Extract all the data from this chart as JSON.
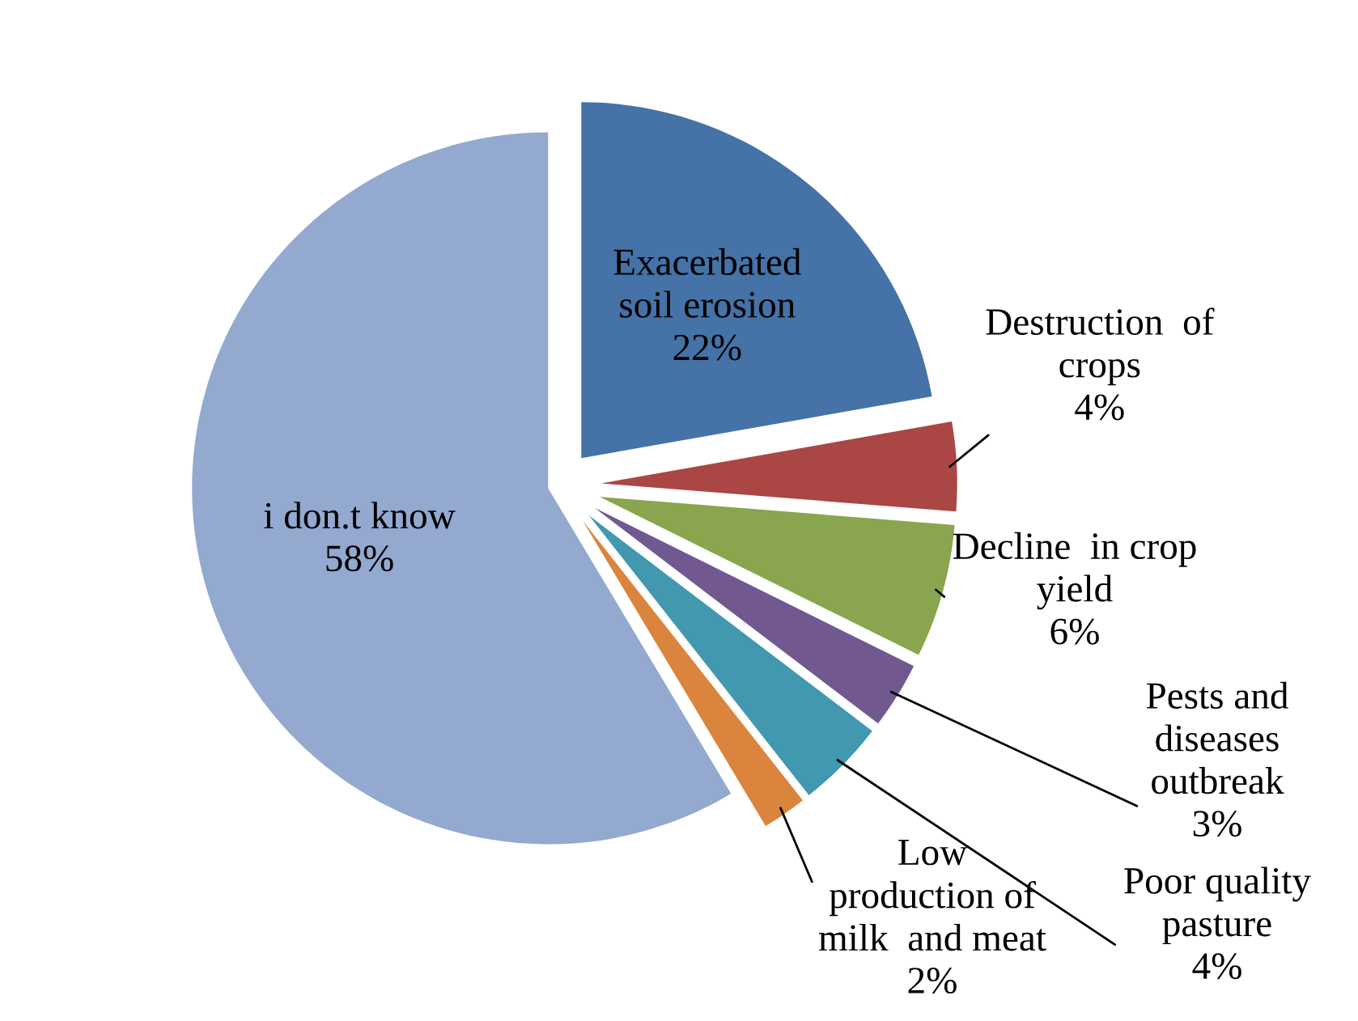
{
  "chart_data": {
    "type": "pie",
    "categories": [
      "Exacerbated\nsoil erosion",
      "Destruction  of\ncrops",
      "Decline  in crop\nyield",
      "Pests and\ndiseases\noutbreak",
      "Poor quality\npasture",
      "Low\nproduction of\nmilk  and meat",
      "i don.t know"
    ],
    "values": [
      22,
      4,
      6,
      3,
      4,
      2,
      58
    ],
    "value_labels": [
      "22%",
      "4%",
      "6%",
      "3%",
      "4%",
      "2%",
      "58%"
    ],
    "colors": [
      "#4572a7",
      "#aa4643",
      "#89a54e",
      "#71588f",
      "#4198af",
      "#db843d",
      "#93a9cf"
    ],
    "legend": false
  }
}
